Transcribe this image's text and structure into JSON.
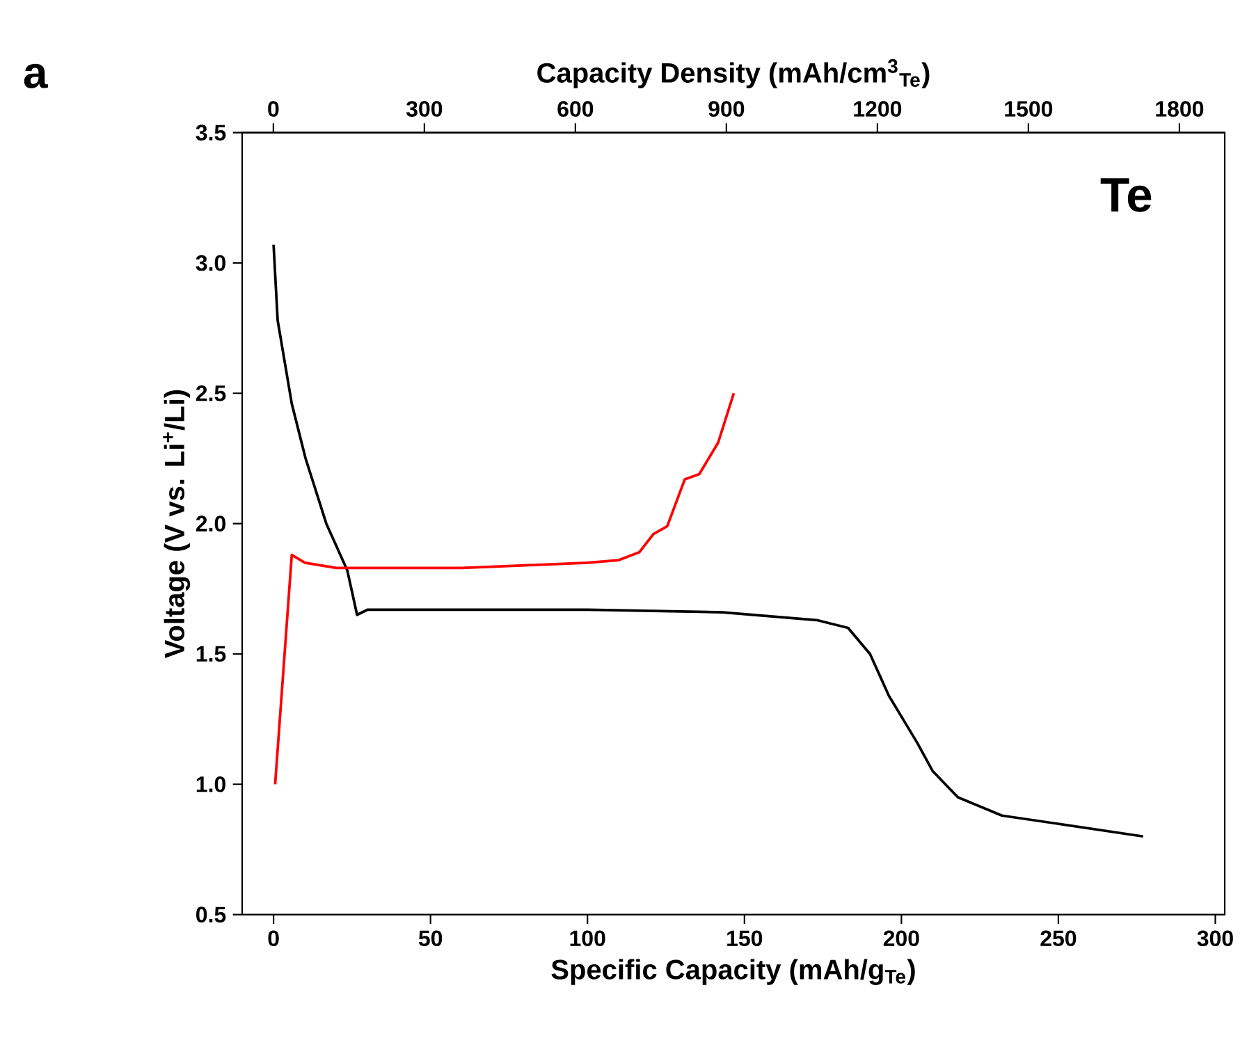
{
  "chart_data": {
    "type": "line",
    "xlabel": "Specific Capacity (mAh/g$_{Te}$)",
    "ylabel": "Voltage (V vs. Li$^{+}$/Li)",
    "x2label": "Capacity Density (mAh/cm$^{3}$$_{Te}$)",
    "annotations": [
      "a",
      "Te"
    ],
    "xlim": [
      -10,
      303
    ],
    "ylim": [
      0.5,
      3.5
    ],
    "x2lim": [
      -62,
      1890
    ],
    "xticks": [
      0,
      50,
      100,
      150,
      200,
      250,
      300
    ],
    "x2ticks": [
      0,
      300,
      600,
      900,
      1200,
      1500,
      1800
    ],
    "yticks": [
      0.5,
      {
        "value": 1,
        "label": "1.0"
      },
      1.5,
      {
        "value": 2,
        "label": "2.0"
      },
      2.5,
      {
        "value": 3,
        "label": "3.0"
      },
      3.5
    ],
    "grid": false,
    "marker": "none",
    "line_style": "solid",
    "series": [
      {
        "color": "#000000",
        "x": [
          0,
          1.3,
          5.8,
          10.2,
          16.8,
          23.5,
          26.6,
          30,
          50,
          100,
          143,
          173,
          183,
          190,
          196,
          205,
          210,
          218,
          232,
          249,
          277
        ],
        "values": [
          3.07,
          2.78,
          2.46,
          2.25,
          2.0,
          1.82,
          1.65,
          1.67,
          1.67,
          1.67,
          1.66,
          1.63,
          1.6,
          1.5,
          1.34,
          1.16,
          1.05,
          0.95,
          0.88,
          0.85,
          0.8
        ]
      },
      {
        "color": "#ff0000",
        "x": [
          0.5,
          5.8,
          10,
          20,
          40,
          60,
          80,
          100,
          110,
          116.5,
          121,
          125.4,
          131,
          135.6,
          141.6,
          146.6
        ],
        "values": [
          1.0,
          1.88,
          1.85,
          1.83,
          1.83,
          1.83,
          1.84,
          1.85,
          1.86,
          1.89,
          1.96,
          1.99,
          2.17,
          2.19,
          2.31,
          2.5
        ]
      }
    ]
  }
}
